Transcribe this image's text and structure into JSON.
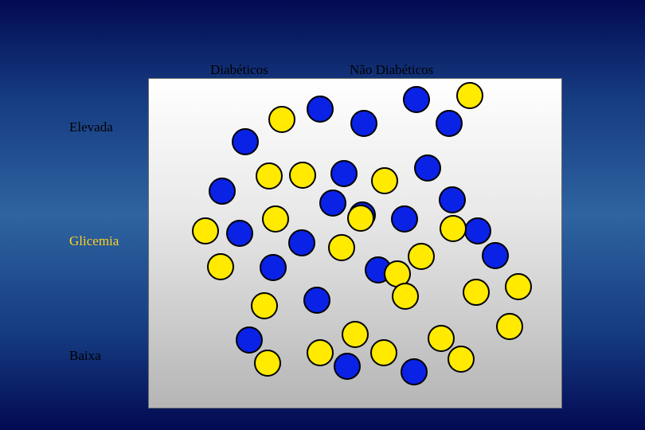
{
  "columns": {
    "diabetic": "Diabéticos",
    "non_diabetic": "Não Diabéticos"
  },
  "rows": {
    "high": "Elevada",
    "middle": "Glicemia",
    "low": "Baixa"
  },
  "colors": {
    "middle_label": "#ffd21f",
    "blue_dot": "#0a22e6",
    "yellow_dot": "#ffea00",
    "dot_outline": "#000000"
  },
  "legend": {
    "blue": "Diabéticos",
    "yellow": "Não Diabéticos"
  },
  "dot_counts": {
    "blue": 22,
    "yellow": 24
  }
}
